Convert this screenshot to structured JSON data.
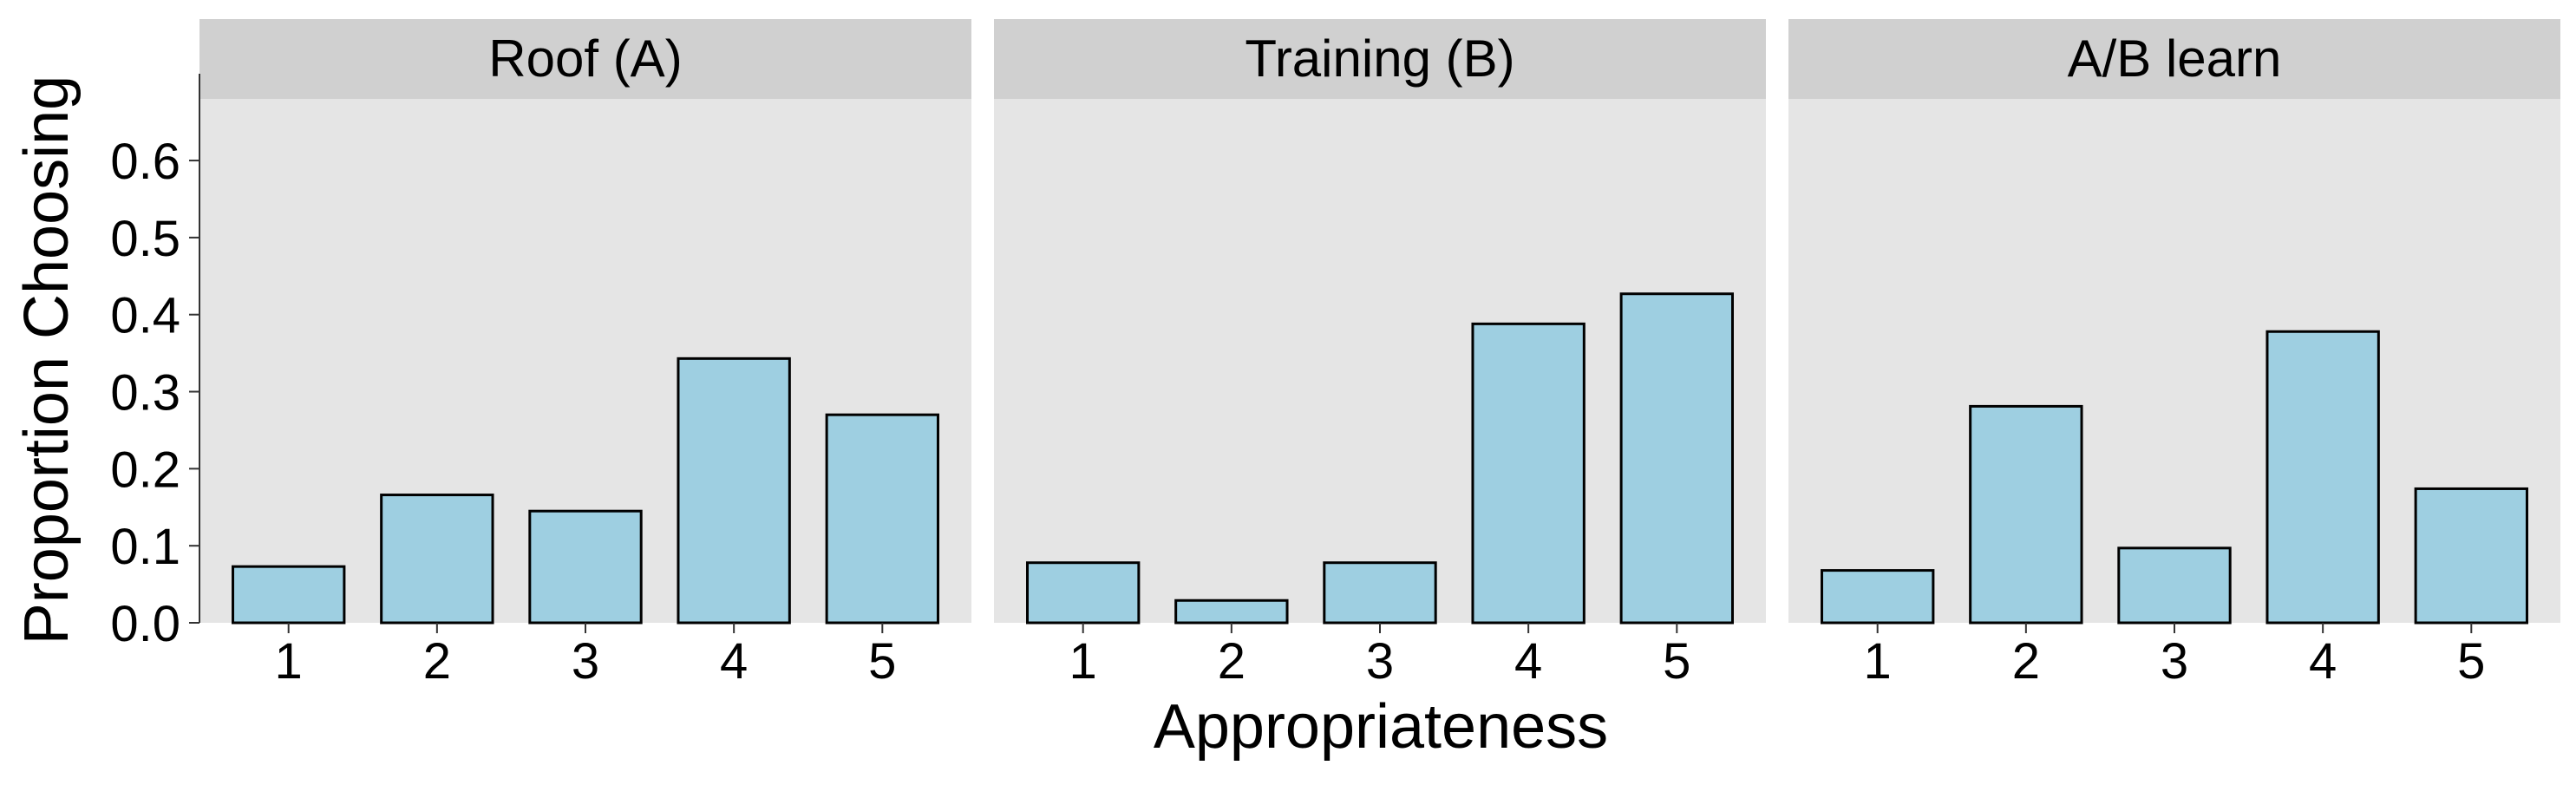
{
  "chart_data": {
    "type": "bar",
    "xlabel": "Appropriateness",
    "ylabel": "Proportion Choosing",
    "ylim": [
      0,
      0.68
    ],
    "yticks": [
      "0.0",
      "0.1",
      "0.2",
      "0.3",
      "0.4",
      "0.5",
      "0.6"
    ],
    "categories": [
      "1",
      "2",
      "3",
      "4",
      "5"
    ],
    "bar_color": "#9ECFE1",
    "panel_bg": "#E5E5E5",
    "strip_bg": "#D0D0D0",
    "grid": false,
    "panels": [
      {
        "title": "Roof (A)",
        "values": [
          0.073,
          0.166,
          0.145,
          0.343,
          0.27
        ]
      },
      {
        "title": "Training (B)",
        "values": [
          0.078,
          0.029,
          0.078,
          0.388,
          0.427
        ]
      },
      {
        "title": "A/B learn",
        "values": [
          0.068,
          0.281,
          0.097,
          0.378,
          0.174
        ]
      }
    ]
  }
}
